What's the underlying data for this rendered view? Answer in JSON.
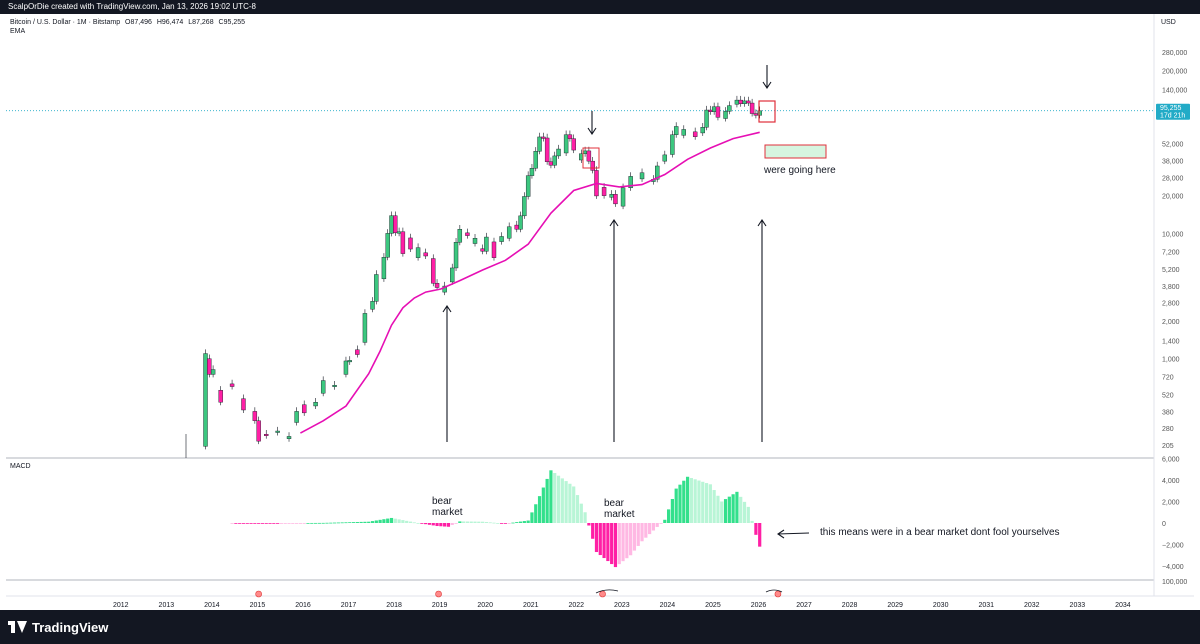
{
  "header": {
    "title": "ScalpOrDie created with TradingView.com, Jan 13, 2026 19:02 UTC-8"
  },
  "legend": {
    "symbol": "Bitcoin / U.S. Dollar · 1M · Bitstamp",
    "open": "O87,496",
    "high": "H96,474",
    "low": "L87,268",
    "close": "C95,255",
    "indicator": "EMA"
  },
  "price_axis": {
    "currency": "USD",
    "labels": [
      "280,000",
      "200,000",
      "140,000",
      "96,255",
      "52,000",
      "38,000",
      "28,000",
      "20,000",
      "10,000",
      "7,200",
      "5,200",
      "3,800",
      "2,800",
      "2,000",
      "1,400",
      "1,000",
      "720",
      "520",
      "380",
      "280",
      "205"
    ],
    "last_price_tag": "95,255",
    "countdown_tag": "17d 21h"
  },
  "macd_panel": {
    "label": "MACD",
    "axis_labels": [
      "6,000",
      "4,000",
      "2,000",
      "0",
      "−2,000",
      "−4,000"
    ]
  },
  "third_panel": {
    "axis_labels": [
      "100,000"
    ]
  },
  "time_axis": {
    "labels": [
      "2012",
      "2013",
      "2014",
      "2015",
      "2016",
      "2017",
      "2018",
      "2019",
      "2020",
      "2021",
      "2022",
      "2023",
      "2024",
      "2025",
      "2026",
      "2027",
      "2028",
      "2029",
      "2030",
      "2031",
      "2032",
      "2033",
      "2034"
    ]
  },
  "annotations": {
    "going_here": "were going here",
    "bear1": "bear\nmarket",
    "bear2": "bear\nmarket",
    "bear_note": "this means were in a bear market dont fool yourselves"
  },
  "footer": {
    "brand": "TradingView"
  },
  "colors": {
    "up": "#26a69a",
    "up_candle": "#3cc77f",
    "down_candle": "#ff1fa5",
    "ema": "#e60fb4",
    "macd_pos_strong": "#33e08c",
    "macd_pos_weak": "#b8f5d6",
    "macd_neg_strong": "#ff1fa5",
    "macd_neg_weak": "#ffb8e3",
    "price_tag": "#22abc7",
    "box_red": "#e0303b",
    "box_green_fill": "#d6f5e0"
  },
  "chart_data": [
    {
      "type": "candlestick",
      "title": "Bitcoin / U.S. Dollar · 1M · Bitstamp",
      "scale": "log",
      "ylim": [
        190,
        420000
      ],
      "x_range": [
        "2011-06",
        "2034-09"
      ],
      "series": [
        {
          "name": "price_monthly_approx",
          "points": [
            [
              "2013-11",
              200,
              1100
            ],
            [
              "2013-12",
              1000,
              750
            ],
            [
              "2014-01",
              750,
              820
            ],
            [
              "2014-03",
              560,
              450
            ],
            [
              "2014-06",
              630,
              600
            ],
            [
              "2014-09",
              480,
              390
            ],
            [
              "2014-12",
              380,
              320
            ],
            [
              "2015-01",
              320,
              220
            ],
            [
              "2015-03",
              250,
              245
            ],
            [
              "2015-06",
              260,
              265
            ],
            [
              "2015-09",
              230,
              240
            ],
            [
              "2015-11",
              310,
              380
            ],
            [
              "2016-01",
              430,
              370
            ],
            [
              "2016-04",
              420,
              450
            ],
            [
              "2016-06",
              530,
              670
            ],
            [
              "2016-09",
              610,
              615
            ],
            [
              "2016-12",
              750,
              960
            ],
            [
              "2017-01",
              960,
              970
            ],
            [
              "2017-03",
              1180,
              1080
            ],
            [
              "2017-05",
              1350,
              2300
            ],
            [
              "2017-07",
              2480,
              2870
            ],
            [
              "2017-08",
              2870,
              4700
            ],
            [
              "2017-10",
              4340,
              6450
            ],
            [
              "2017-11",
              6450,
              10000
            ],
            [
              "2017-12",
              10000,
              13850
            ],
            [
              "2018-01",
              13850,
              10100
            ],
            [
              "2018-02",
              10100,
              10300
            ],
            [
              "2018-03",
              10300,
              6900
            ],
            [
              "2018-05",
              9200,
              7500
            ],
            [
              "2018-07",
              6400,
              7700
            ],
            [
              "2018-09",
              7000,
              6600
            ],
            [
              "2018-11",
              6300,
              4000
            ],
            [
              "2018-12",
              4000,
              3700
            ],
            [
              "2019-02",
              3400,
              3800
            ],
            [
              "2019-04",
              4100,
              5300
            ],
            [
              "2019-05",
              5300,
              8500
            ],
            [
              "2019-06",
              8500,
              10800
            ],
            [
              "2019-08",
              10100,
              9600
            ],
            [
              "2019-10",
              8300,
              9150
            ],
            [
              "2019-12",
              7550,
              7200
            ],
            [
              "2020-01",
              7200,
              9350
            ],
            [
              "2020-03",
              8550,
              6400
            ],
            [
              "2020-05",
              8600,
              9450
            ],
            [
              "2020-07",
              9150,
              11300
            ],
            [
              "2020-09",
              11650,
              10800
            ],
            [
              "2020-10",
              10800,
              13800
            ],
            [
              "2020-11",
              13800,
              19700
            ],
            [
              "2020-12",
              19700,
              28900
            ],
            [
              "2021-01",
              28900,
              33100
            ],
            [
              "2021-02",
              33100,
              45200
            ],
            [
              "2021-03",
              45200,
              58800
            ],
            [
              "2021-04",
              58800,
              57700
            ],
            [
              "2021-05",
              57700,
              37300
            ],
            [
              "2021-06",
              37300,
              35000
            ],
            [
              "2021-07",
              35000,
              41500
            ],
            [
              "2021-08",
              41500,
              47100
            ],
            [
              "2021-10",
              43800,
              61300
            ],
            [
              "2021-11",
              61300,
              57000
            ],
            [
              "2021-12",
              57000,
              46200
            ],
            [
              "2022-02",
              38500,
              43200
            ],
            [
              "2022-03",
              43200,
              45500
            ],
            [
              "2022-04",
              45500,
              37700
            ],
            [
              "2022-05",
              37700,
              31800
            ],
            [
              "2022-06",
              31800,
              19900
            ],
            [
              "2022-08",
              23300,
              20000
            ],
            [
              "2022-10",
              19400,
              20500
            ],
            [
              "2022-11",
              20500,
              17200
            ],
            [
              "2023-01",
              16500,
              23100
            ],
            [
              "2023-03",
              23100,
              28500
            ],
            [
              "2023-06",
              27200,
              30500
            ],
            [
              "2023-09",
              25900,
              27000
            ],
            [
              "2023-10",
              27000,
              34500
            ],
            [
              "2023-12",
              37700,
              42300
            ],
            [
              "2024-02",
              42600,
              61200
            ],
            [
              "2024-03",
              61200,
              71300
            ],
            [
              "2024-05",
              60600,
              67500
            ],
            [
              "2024-08",
              64600,
              59000
            ],
            [
              "2024-10",
              63300,
              70300
            ],
            [
              "2024-11",
              70300,
              96400
            ],
            [
              "2024-12",
              96400,
              93400
            ],
            [
              "2025-01",
              93400,
              102400
            ],
            [
              "2025-02",
              102400,
              84300
            ],
            [
              "2025-04",
              82500,
              94200
            ],
            [
              "2025-05",
              94200,
              104600
            ],
            [
              "2025-07",
              107100,
              115700
            ],
            [
              "2025-08",
              115700,
              108200
            ],
            [
              "2025-09",
              108200,
              114000
            ],
            [
              "2025-10",
              114000,
              109600
            ],
            [
              "2025-11",
              109600,
              90400
            ],
            [
              "2025-12",
              90400,
              87500
            ],
            [
              "2026-01",
              87496,
              95255
            ]
          ]
        },
        {
          "name": "EMA",
          "points": [
            [
              "2015-12",
              255
            ],
            [
              "2016-06",
              320
            ],
            [
              "2016-12",
              420
            ],
            [
              "2017-06",
              760
            ],
            [
              "2017-09",
              1150
            ],
            [
              "2017-12",
              1850
            ],
            [
              "2018-03",
              2550
            ],
            [
              "2018-06",
              3050
            ],
            [
              "2018-09",
              3400
            ],
            [
              "2019-01",
              3600
            ],
            [
              "2019-06",
              4200
            ],
            [
              "2019-12",
              5100
            ],
            [
              "2020-06",
              6100
            ],
            [
              "2020-12",
              8200
            ],
            [
              "2021-06",
              14500
            ],
            [
              "2021-12",
              22000
            ],
            [
              "2022-06",
              25000
            ],
            [
              "2022-12",
              23500
            ],
            [
              "2023-06",
              24500
            ],
            [
              "2023-12",
              29500
            ],
            [
              "2024-06",
              39000
            ],
            [
              "2024-12",
              48000
            ],
            [
              "2025-06",
              57000
            ],
            [
              "2026-01",
              64000
            ]
          ]
        }
      ]
    },
    {
      "type": "bar",
      "title": "MACD",
      "ylim": [
        -5200,
        6000
      ],
      "series": [
        {
          "name": "histogram",
          "points": [
            [
              "2014-06",
              -15
            ],
            [
              "2015-06",
              -20
            ],
            [
              "2016-06",
              10
            ],
            [
              "2017-06",
              120
            ],
            [
              "2017-12",
              470
            ],
            [
              "2018-03",
              270
            ],
            [
              "2018-06",
              60
            ],
            [
              "2018-12",
              -280
            ],
            [
              "2019-03",
              -350
            ],
            [
              "2019-06",
              150
            ],
            [
              "2019-12",
              120
            ],
            [
              "2020-06",
              -60
            ],
            [
              "2020-12",
              230
            ],
            [
              "2021-03",
              2500
            ],
            [
              "2021-06",
              4900
            ],
            [
              "2021-12",
              3400
            ],
            [
              "2022-03",
              1000
            ],
            [
              "2022-06",
              -2700
            ],
            [
              "2022-11",
              -4100
            ],
            [
              "2023-03",
              -3000
            ],
            [
              "2023-06",
              -1700
            ],
            [
              "2023-12",
              300
            ],
            [
              "2024-03",
              3200
            ],
            [
              "2024-06",
              4300
            ],
            [
              "2024-12",
              3600
            ],
            [
              "2025-03",
              2000
            ],
            [
              "2025-07",
              2900
            ],
            [
              "2025-10",
              1500
            ],
            [
              "2025-12",
              -1100
            ],
            [
              "2026-01",
              -2200
            ]
          ]
        }
      ]
    }
  ]
}
